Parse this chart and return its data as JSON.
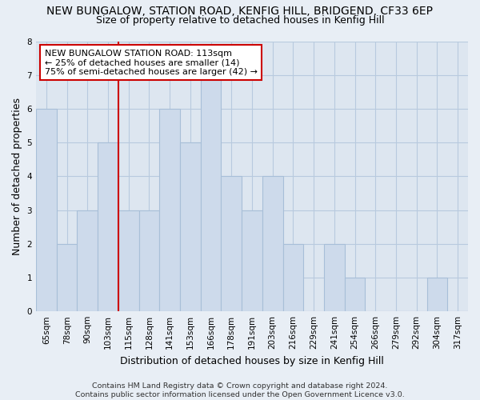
{
  "title": "NEW BUNGALOW, STATION ROAD, KENFIG HILL, BRIDGEND, CF33 6EP",
  "subtitle": "Size of property relative to detached houses in Kenfig Hill",
  "xlabel": "Distribution of detached houses by size in Kenfig Hill",
  "ylabel": "Number of detached properties",
  "bin_labels": [
    "65sqm",
    "78sqm",
    "90sqm",
    "103sqm",
    "115sqm",
    "128sqm",
    "141sqm",
    "153sqm",
    "166sqm",
    "178sqm",
    "191sqm",
    "203sqm",
    "216sqm",
    "229sqm",
    "241sqm",
    "254sqm",
    "266sqm",
    "279sqm",
    "292sqm",
    "304sqm",
    "317sqm"
  ],
  "bar_heights": [
    6,
    2,
    3,
    5,
    3,
    3,
    6,
    5,
    7,
    4,
    3,
    4,
    2,
    0,
    2,
    1,
    0,
    0,
    0,
    1,
    0
  ],
  "bar_color": "#cddaeb",
  "bar_edge_color": "#a8bfd8",
  "property_line_color": "#cc0000",
  "property_line_index": 3.5,
  "annotation_text": "NEW BUNGALOW STATION ROAD: 113sqm\n← 25% of detached houses are smaller (14)\n75% of semi-detached houses are larger (42) →",
  "annotation_box_color": "#ffffff",
  "annotation_box_edge_color": "#cc0000",
  "footer_text": "Contains HM Land Registry data © Crown copyright and database right 2024.\nContains public sector information licensed under the Open Government Licence v3.0.",
  "ylim": [
    0,
    8
  ],
  "yticks": [
    0,
    1,
    2,
    3,
    4,
    5,
    6,
    7,
    8
  ],
  "background_color": "#e8eef5",
  "plot_background_color": "#dde6f0",
  "grid_color": "#b8cade",
  "title_fontsize": 10,
  "subtitle_fontsize": 9,
  "axis_label_fontsize": 9,
  "tick_fontsize": 7.5,
  "annotation_fontsize": 8,
  "footer_fontsize": 6.8
}
